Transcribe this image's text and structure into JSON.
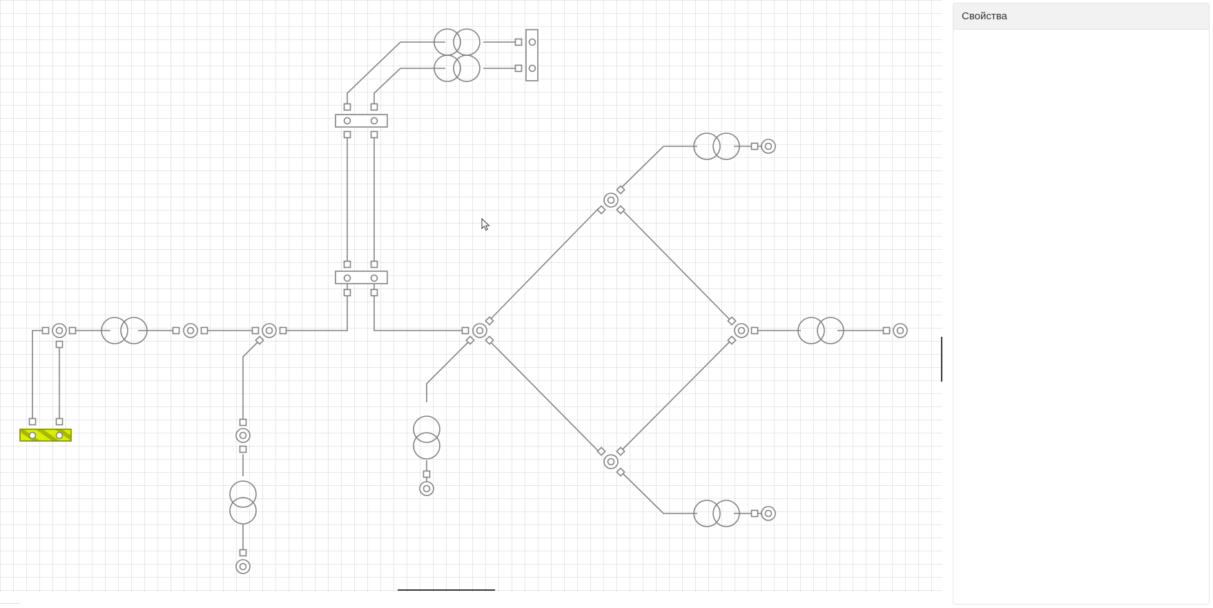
{
  "panel": {
    "title": "Свойства"
  },
  "colors": {
    "grid": "#cfcfcf",
    "line": "#808080",
    "selected_fill": "#d8f000",
    "selected_stroke": "#7a8a00",
    "panel_header_bg": "#f2f2f2"
  },
  "icons": {
    "cursor": "arrow-cursor-icon"
  }
}
